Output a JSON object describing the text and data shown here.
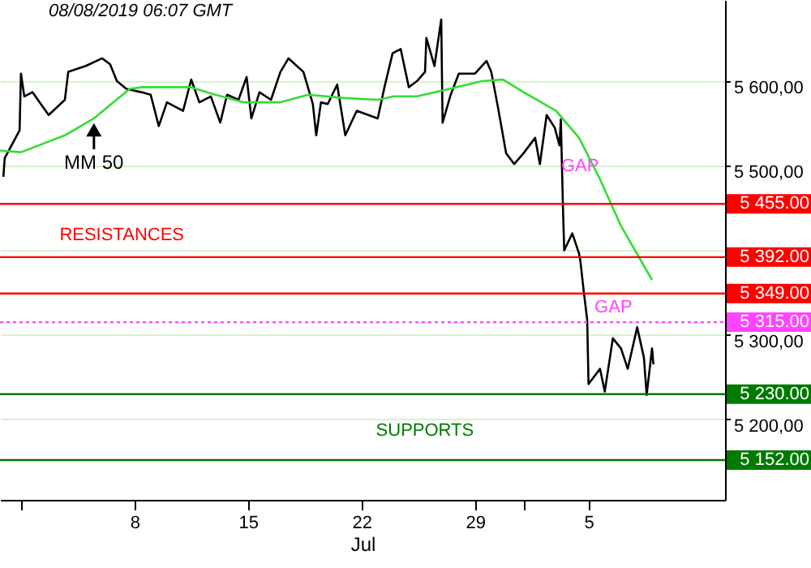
{
  "chart_data": {
    "type": "line",
    "xlabel": "Jul",
    "xlim": [
      "2019-06-29T17:00",
      "2019-08-13T10:00"
    ],
    "xticks": [
      {
        "value": "2019-07-01",
        "label": null
      },
      {
        "value": "2019-07-08",
        "label": "8"
      },
      {
        "value": "2019-07-15",
        "label": "15"
      },
      {
        "value": "2019-07-22",
        "label": "22"
      },
      {
        "value": "2019-07-29",
        "label": "29"
      },
      {
        "value": "2019-08-01",
        "label": null
      },
      {
        "value": "2019-08-05",
        "label": "5"
      }
    ],
    "ylim": [
      5105,
      5696
    ],
    "yticks": [
      {
        "value": 5200,
        "label": "5 200,00"
      },
      {
        "value": 5300,
        "label": "5 300,00"
      },
      {
        "value": 5400,
        "label": null
      },
      {
        "value": 5500,
        "label": "5 500,00"
      },
      {
        "value": 5600,
        "label": "5 600,00"
      }
    ],
    "grid": "y",
    "line_style": "solid",
    "marker": "none",
    "series": [
      {
        "color": "#000000",
        "x": [
          "2019-06-29T22:00",
          "2019-06-30T00:00",
          "2019-06-30T22:00",
          "2019-07-01T00:00",
          "2019-07-01T05:00",
          "2019-07-01T17:00",
          "2019-07-02T17:00",
          "2019-07-03T17:00",
          "2019-07-03T22:00",
          "2019-07-05T00:00",
          "2019-07-06T00:00",
          "2019-07-06T12:00",
          "2019-07-06T22:00",
          "2019-07-07T12:00",
          "2019-07-08T10:00",
          "2019-07-09T00:00",
          "2019-07-09T12:00",
          "2019-07-10T00:00",
          "2019-07-11T00:00",
          "2019-07-11T12:00",
          "2019-07-12T00:00",
          "2019-07-12T17:00",
          "2019-07-13T07:00",
          "2019-07-13T17:00",
          "2019-07-14T10:00",
          "2019-07-14T22:00",
          "2019-07-15T05:00",
          "2019-07-15T17:00",
          "2019-07-16T10:00",
          "2019-07-17T00:00",
          "2019-07-17T12:00",
          "2019-07-18T10:00",
          "2019-07-19T00:00",
          "2019-07-19T05:00",
          "2019-07-19T12:00",
          "2019-07-19T22:00",
          "2019-07-20T12:00",
          "2019-07-21T00:00",
          "2019-07-21T17:00",
          "2019-07-23T00:00",
          "2019-07-23T10:00",
          "2019-07-23T22:00",
          "2019-07-24T10:00",
          "2019-07-24T22:00",
          "2019-07-25T10:00",
          "2019-07-25T22:00",
          "2019-07-26T00:00",
          "2019-07-26T12:00",
          "2019-07-26T22:00",
          "2019-07-27T00:00",
          "2019-07-27T12:00",
          "2019-07-28T00:00",
          "2019-07-29T00:00",
          "2019-07-29T17:00",
          "2019-07-30T00:00",
          "2019-07-30T10:00",
          "2019-07-30T22:00",
          "2019-07-31T10:00",
          "2019-08-01T00:00",
          "2019-08-01T17:00",
          "2019-08-02T00:00",
          "2019-08-02T10:00",
          "2019-08-02T22:00",
          "2019-08-03T05:00",
          "2019-08-03T07:00",
          "2019-08-03T10:00",
          "2019-08-03T12:00",
          "2019-08-04T00:00",
          "2019-08-04T10:00",
          "2019-08-04T12:00",
          "2019-08-04T17:00",
          "2019-08-04T22:00",
          "2019-08-05T00:00",
          "2019-08-05T17:00",
          "2019-08-06T00:00",
          "2019-08-06T12:00",
          "2019-08-07T00:00",
          "2019-08-07T10:00",
          "2019-08-08T00:00",
          "2019-08-08T10:00",
          "2019-08-08T14:00",
          "2019-08-08T22:00",
          "2019-08-09T00:00"
        ],
        "values": [
          5487,
          5509,
          5542,
          5609,
          5582,
          5587,
          5560,
          5578,
          5611,
          5618,
          5627,
          5620,
          5600,
          5591,
          5587,
          5584,
          5547,
          5575,
          5565,
          5602,
          5575,
          5582,
          5551,
          5584,
          5578,
          5605,
          5556,
          5587,
          5578,
          5611,
          5627,
          5611,
          5573,
          5536,
          5575,
          5573,
          5596,
          5536,
          5565,
          5556,
          5593,
          5633,
          5638,
          5593,
          5600,
          5611,
          5651,
          5618,
          5673,
          5551,
          5584,
          5609,
          5609,
          5624,
          5611,
          5569,
          5515,
          5502,
          5515,
          5533,
          5502,
          5560,
          5545,
          5524,
          5555,
          5455,
          5400,
          5420,
          5396,
          5387,
          5351,
          5318,
          5242,
          5260,
          5233,
          5296,
          5284,
          5260,
          5309,
          5273,
          5229,
          5284,
          5265
        ]
      },
      {
        "name": "MM 50",
        "color": "#33dd33",
        "x": [
          "2019-06-29T17:00",
          "2019-07-01T00:00",
          "2019-07-03T17:00",
          "2019-07-05T12:00",
          "2019-07-07T17:00",
          "2019-07-08T12:00",
          "2019-07-11T10:00",
          "2019-07-13T00:00",
          "2019-07-14T17:00",
          "2019-07-17T00:00",
          "2019-07-18T17:00",
          "2019-07-21T00:00",
          "2019-07-23T00:00",
          "2019-07-24T00:00",
          "2019-07-25T10:00",
          "2019-07-27T00:00",
          "2019-07-29T10:00",
          "2019-07-30T17:00",
          "2019-08-01T00:00",
          "2019-08-03T00:00",
          "2019-08-04T10:00",
          "2019-08-05T17:00",
          "2019-08-07T00:00",
          "2019-08-08T22:00"
        ],
        "values": [
          5518,
          5516,
          5536,
          5556,
          5591,
          5593,
          5593,
          5584,
          5575,
          5575,
          5584,
          5580,
          5578,
          5582,
          5582,
          5589,
          5600,
          5602,
          5587,
          5565,
          5533,
          5484,
          5429,
          5365
        ]
      }
    ],
    "ref_lines": [
      {
        "axis": "y",
        "value": 5455,
        "label": "5 455.00",
        "color": "#ff0000"
      },
      {
        "axis": "y",
        "value": 5392,
        "label": "5 392.00",
        "color": "#ff0000"
      },
      {
        "axis": "y",
        "value": 5349,
        "label": "5 349.00",
        "color": "#ff0000"
      },
      {
        "axis": "y",
        "value": 5315,
        "label": "5 315.00",
        "color": "#ff44ff",
        "line_style": "dotted"
      },
      {
        "axis": "y",
        "value": 5230,
        "label": "5 230.00",
        "color": "#007a00"
      },
      {
        "axis": "y",
        "value": 5152,
        "label": "5 152.00",
        "color": "#007a00"
      }
    ],
    "annotations": [
      "08/08/2019 06:07 GMT",
      "RESISTANCES",
      "GAP",
      "GAP",
      "SUPPORTS"
    ]
  }
}
